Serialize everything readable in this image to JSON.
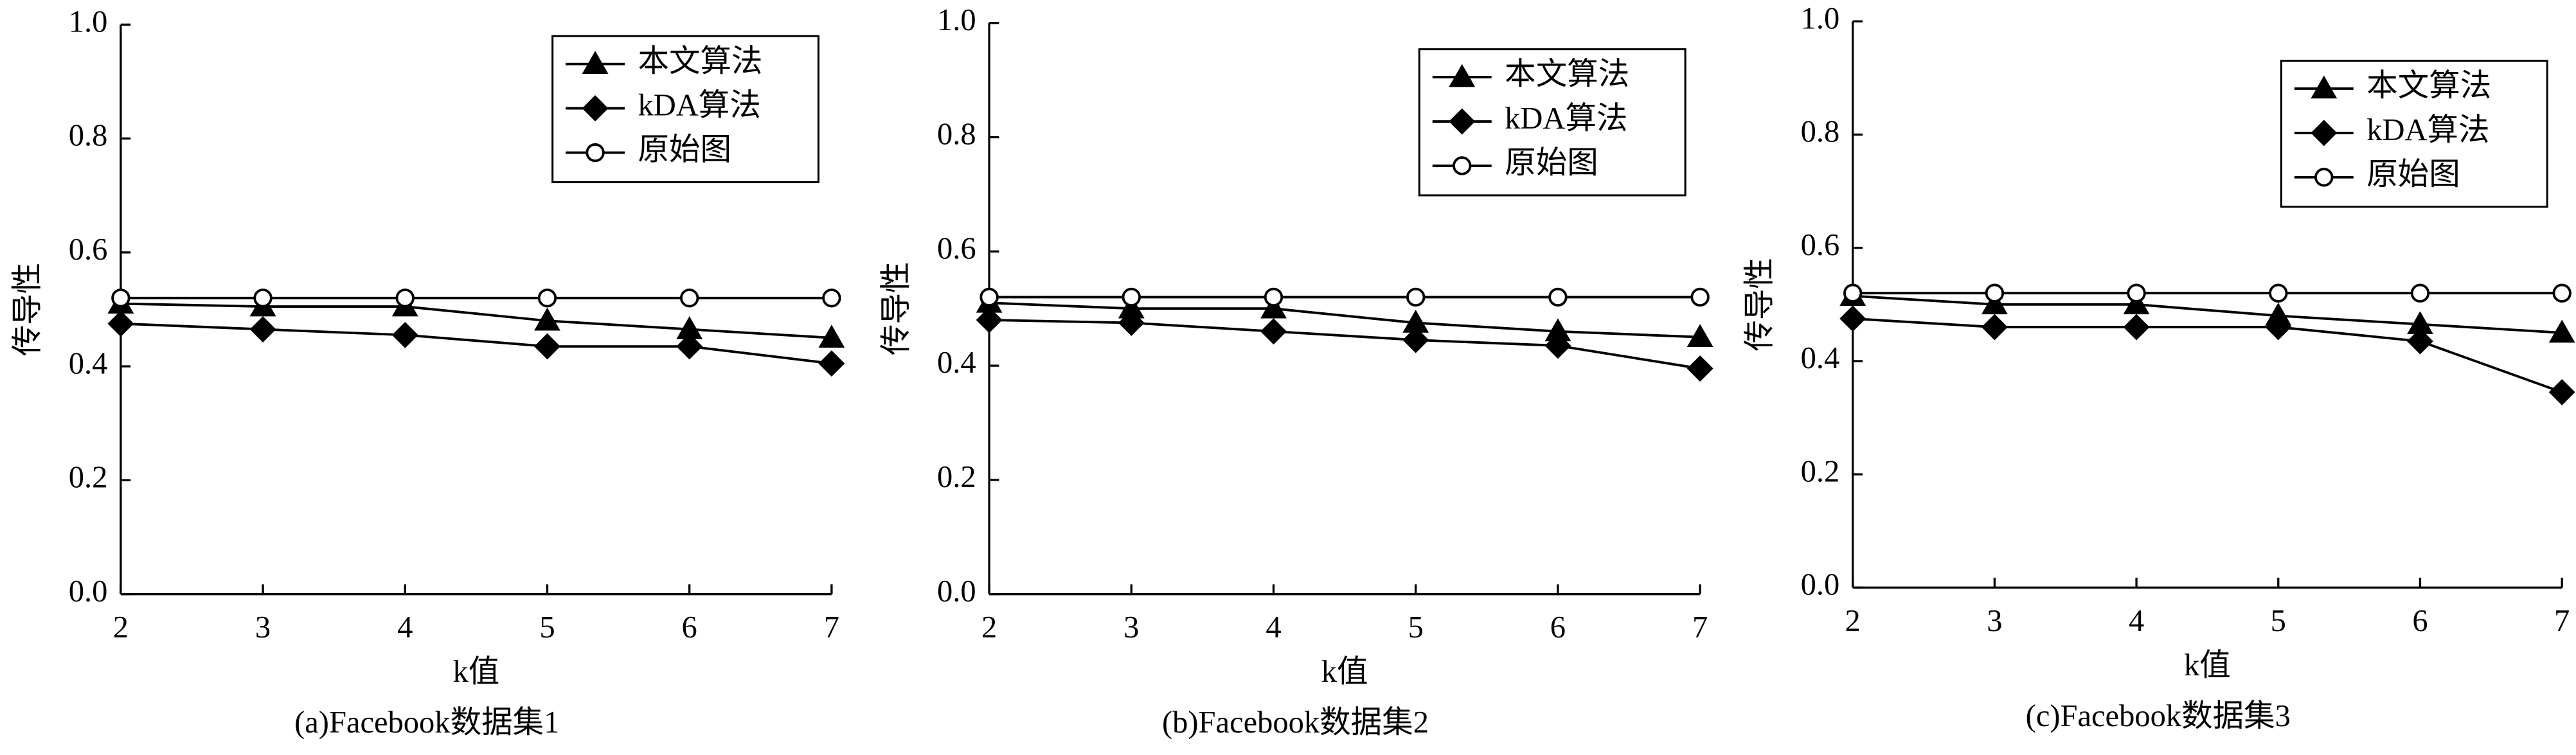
{
  "chart_data": [
    {
      "type": "line",
      "caption": "(a)Facebook数据集1",
      "xlabel": "k值",
      "ylabel": "传导性",
      "x": [
        2,
        3,
        4,
        5,
        6,
        7
      ],
      "xlim": [
        2,
        7
      ],
      "xticks": [
        2,
        3,
        4,
        5,
        6,
        7
      ],
      "ylim": [
        0,
        1
      ],
      "yticks": [
        {
          "value": 0,
          "label": "0.0"
        },
        {
          "value": 0.2,
          "label": "0.2"
        },
        {
          "value": 0.4,
          "label": "0.4"
        },
        {
          "value": 0.6,
          "label": "0.6"
        },
        {
          "value": 0.8,
          "label": "0.8"
        },
        {
          "value": 1,
          "label": "1.0"
        }
      ],
      "legend": "upper right",
      "series": [
        {
          "name": "本文算法",
          "color": "#000000",
          "marker": "triangle",
          "values": [
            0.51,
            0.505,
            0.505,
            0.48,
            0.465,
            0.45
          ]
        },
        {
          "name": "kDA算法",
          "color": "#000000",
          "marker": "diamond",
          "values": [
            0.475,
            0.465,
            0.455,
            0.435,
            0.435,
            0.405
          ]
        },
        {
          "name": "原始图",
          "color": "#000000",
          "marker": "circle",
          "values": [
            0.52,
            0.52,
            0.52,
            0.52,
            0.52,
            0.52
          ]
        }
      ]
    },
    {
      "type": "line",
      "caption": "(b)Facebook数据集2",
      "xlabel": "k值",
      "ylabel": "传导性",
      "x": [
        2,
        3,
        4,
        5,
        6,
        7
      ],
      "xlim": [
        2,
        7
      ],
      "xticks": [
        2,
        3,
        4,
        5,
        6,
        7
      ],
      "ylim": [
        0,
        1
      ],
      "yticks": [
        {
          "value": 0,
          "label": "0.0"
        },
        {
          "value": 0.2,
          "label": "0.2"
        },
        {
          "value": 0.4,
          "label": "0.4"
        },
        {
          "value": 0.6,
          "label": "0.6"
        },
        {
          "value": 0.8,
          "label": "0.8"
        },
        {
          "value": 1,
          "label": "1.0"
        }
      ],
      "legend": "upper right",
      "series": [
        {
          "name": "本文算法",
          "color": "#000000",
          "marker": "triangle",
          "values": [
            0.51,
            0.5,
            0.5,
            0.475,
            0.46,
            0.45
          ]
        },
        {
          "name": "kDA算法",
          "color": "#000000",
          "marker": "diamond",
          "values": [
            0.48,
            0.475,
            0.46,
            0.445,
            0.435,
            0.395
          ]
        },
        {
          "name": "原始图",
          "color": "#000000",
          "marker": "circle",
          "values": [
            0.52,
            0.52,
            0.52,
            0.52,
            0.52,
            0.52
          ]
        }
      ]
    },
    {
      "type": "line",
      "caption": "(c)Facebook数据集3",
      "xlabel": "k值",
      "ylabel": "传导性",
      "x": [
        2,
        3,
        4,
        5,
        6,
        7
      ],
      "xlim": [
        2,
        7
      ],
      "xticks": [
        2,
        3,
        4,
        5,
        6,
        7
      ],
      "ylim": [
        0,
        1
      ],
      "yticks": [
        {
          "value": 0,
          "label": "0.0"
        },
        {
          "value": 0.2,
          "label": "0.2"
        },
        {
          "value": 0.4,
          "label": "0.4"
        },
        {
          "value": 0.6,
          "label": "0.6"
        },
        {
          "value": 0.8,
          "label": "0.8"
        },
        {
          "value": 1,
          "label": "1.0"
        }
      ],
      "legend": "upper right",
      "series": [
        {
          "name": "本文算法",
          "color": "#000000",
          "marker": "triangle",
          "values": [
            0.515,
            0.5,
            0.5,
            0.48,
            0.465,
            0.45
          ]
        },
        {
          "name": "kDA算法",
          "color": "#000000",
          "marker": "diamond",
          "values": [
            0.475,
            0.46,
            0.46,
            0.46,
            0.435,
            0.345
          ]
        },
        {
          "name": "原始图",
          "color": "#000000",
          "marker": "circle",
          "values": [
            0.52,
            0.52,
            0.52,
            0.52,
            0.52,
            0.52
          ]
        }
      ]
    }
  ]
}
